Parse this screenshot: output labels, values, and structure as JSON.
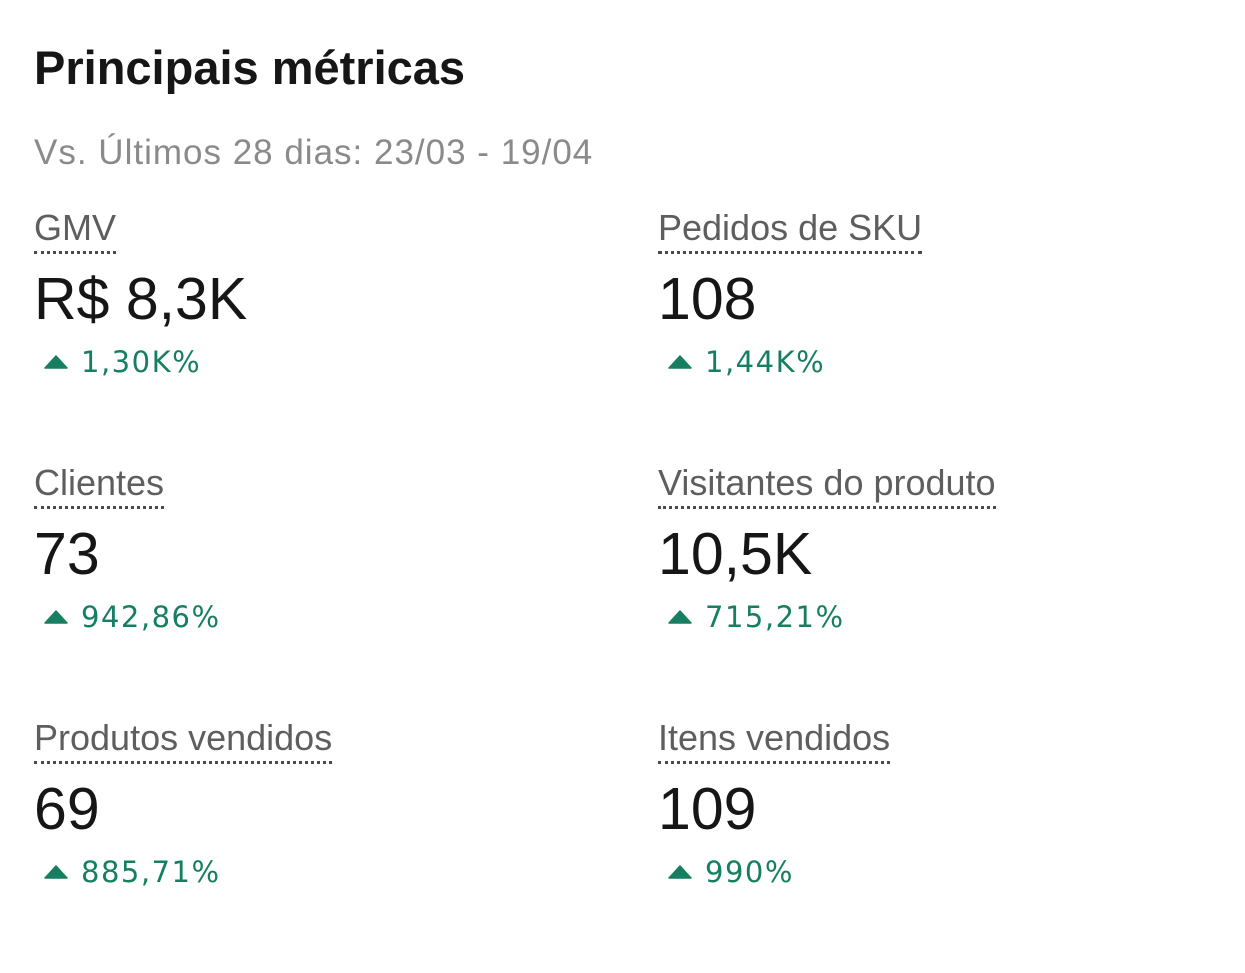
{
  "header": {
    "title": "Principais métricas",
    "subtitle": "Vs. Últimos 28 dias: 23/03 - 19/04"
  },
  "metrics": [
    {
      "label": "GMV",
      "value": "R$ 8,3K",
      "change": "1,30K%",
      "trend": "up"
    },
    {
      "label": "Pedidos de SKU",
      "value": "108",
      "change": "1,44K%",
      "trend": "up"
    },
    {
      "label": "Clientes",
      "value": "73",
      "change": "942,86%",
      "trend": "up"
    },
    {
      "label": "Visitantes do produto",
      "value": "10,5K",
      "change": "715,21%",
      "trend": "up"
    },
    {
      "label": "Produtos vendidos",
      "value": "69",
      "change": "885,71%",
      "trend": "up"
    },
    {
      "label": "Itens vendidos",
      "value": "109",
      "change": "990%",
      "trend": "up"
    }
  ],
  "colors": {
    "positive": "#167f62",
    "label": "#5e5e5e",
    "subtitle": "#8a8a8a",
    "value": "#161616"
  },
  "icons": {
    "trend_up": "triangle-up-icon"
  }
}
